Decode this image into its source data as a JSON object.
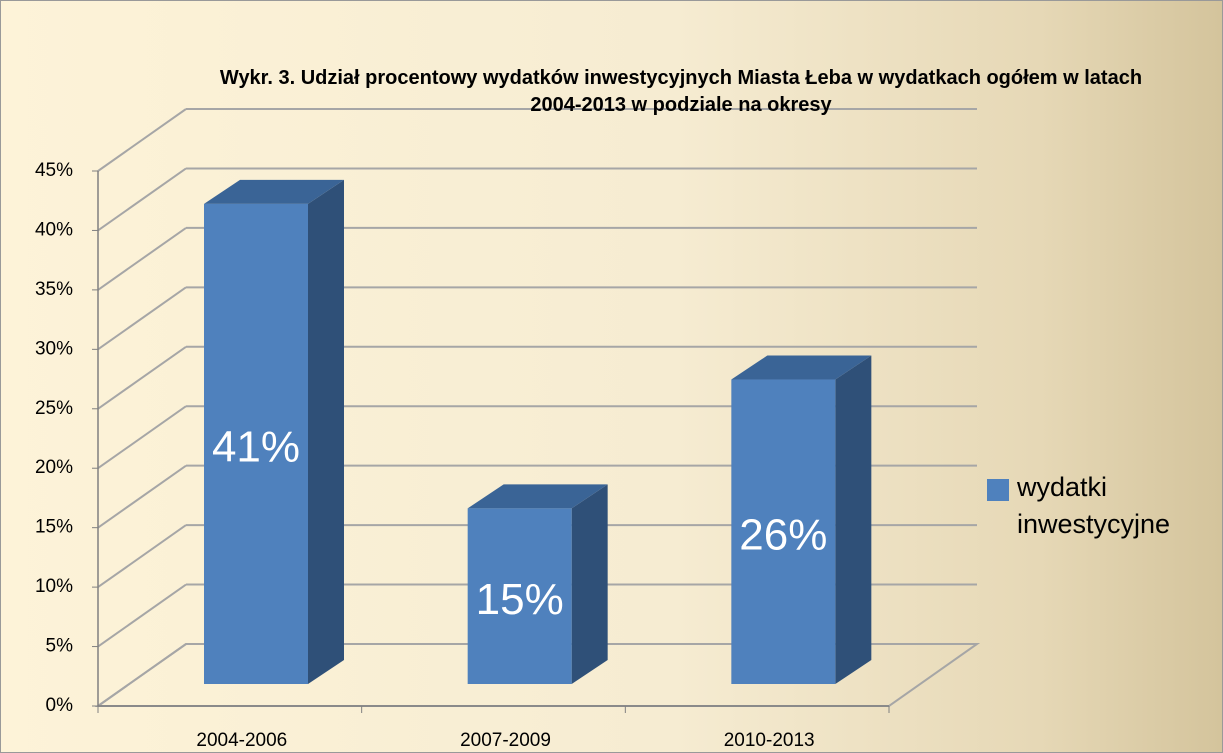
{
  "chart_data": {
    "type": "bar3d",
    "title": "Wykr. 3. Udział procentowy wydatków inwestycyjnych Miasta Łeba w wydatkach ogółem w latach 2004-2013 w podziale na okresy",
    "categories": [
      "2004-2006",
      "2007-2009",
      "2010-2013"
    ],
    "series": [
      {
        "name": "wydatki inwestycyjne",
        "color": "#4f81bd",
        "values": [
          41,
          15,
          26
        ],
        "value_labels": [
          "41%",
          "15%",
          "26%"
        ]
      }
    ],
    "ylim": [
      0,
      45
    ],
    "yticks": [
      {
        "value": 0,
        "label": "0%"
      },
      {
        "value": 5,
        "label": "5%"
      },
      {
        "value": 10,
        "label": "10%"
      },
      {
        "value": 15,
        "label": "15%"
      },
      {
        "value": 20,
        "label": "20%"
      },
      {
        "value": 25,
        "label": "25%"
      },
      {
        "value": 30,
        "label": "30%"
      },
      {
        "value": 35,
        "label": "35%"
      },
      {
        "value": 40,
        "label": "40%"
      },
      {
        "value": 45,
        "label": "45%"
      }
    ],
    "grid": true,
    "legend": "right"
  }
}
